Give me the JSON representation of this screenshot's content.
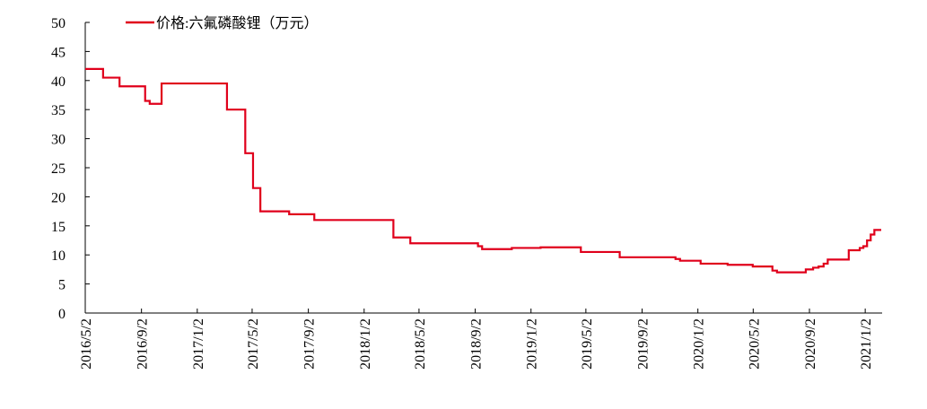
{
  "chart_data": {
    "type": "line",
    "x": [
      "2016/5/2",
      "2016/6/10",
      "2016/6/10",
      "2016/7/16",
      "2016/7/16",
      "2016/9/10",
      "2016/9/10",
      "2016/9/20",
      "2016/9/20",
      "2016/10/16",
      "2016/10/16",
      "2017/3/8",
      "2017/3/8",
      "2017/4/17",
      "2017/4/17",
      "2017/5/4",
      "2017/5/4",
      "2017/5/20",
      "2017/5/20",
      "2017/7/22",
      "2017/7/22",
      "2017/9/15",
      "2017/9/15",
      "2018/3/7",
      "2018/3/7",
      "2018/4/13",
      "2018/4/13",
      "2018/9/8",
      "2018/9/8",
      "2018/9/17",
      "2018/9/17",
      "2018/11/21",
      "2018/11/21",
      "2019/1/23",
      "2019/1/23",
      "2019/4/21",
      "2019/4/21",
      "2019/7/15",
      "2019/7/15",
      "2019/11/14",
      "2019/11/14",
      "2019/11/24",
      "2019/11/24",
      "2020/1/8",
      "2020/1/8",
      "2020/3/7",
      "2020/3/7",
      "2020/5/1",
      "2020/5/1",
      "2020/6/13",
      "2020/6/13",
      "2020/6/23",
      "2020/6/23",
      "2020/8/25",
      "2020/8/25",
      "2020/9/10",
      "2020/9/10",
      "2020/9/22",
      "2020/9/22",
      "2020/10/3",
      "2020/10/3",
      "2020/10/12",
      "2020/10/12",
      "2020/11/27",
      "2020/11/27",
      "2020/12/21",
      "2020/12/21",
      "2020/12/29",
      "2020/12/29",
      "2021/1/6",
      "2021/1/6",
      "2021/1/14",
      "2021/1/14",
      "2021/1/22",
      "2021/1/22",
      "2021/2/6"
    ],
    "series": [
      {
        "name": "价格:六氟磷酸锂（万元）",
        "color": "#e0001b",
        "values": [
          42,
          42,
          40.5,
          40.5,
          39,
          39,
          36.5,
          36.5,
          36,
          36,
          39.5,
          39.5,
          35,
          35,
          27.5,
          27.5,
          21.5,
          21.5,
          17.5,
          17.5,
          17,
          17,
          16,
          16,
          13,
          13,
          12,
          12,
          11.5,
          11.5,
          11,
          11,
          11.2,
          11.2,
          11.3,
          11.3,
          10.5,
          10.5,
          9.6,
          9.6,
          9.3,
          9.3,
          9,
          9,
          8.5,
          8.5,
          8.3,
          8.3,
          8,
          8,
          7.3,
          7.3,
          7,
          7,
          7.5,
          7.5,
          7.8,
          7.8,
          8,
          8,
          8.5,
          8.5,
          9.2,
          9.2,
          10.8,
          10.8,
          11.2,
          11.2,
          11.5,
          11.5,
          12.5,
          12.5,
          13.5,
          13.5,
          14.3,
          14.3
        ]
      }
    ],
    "xlim": [
      "2016/5/2",
      "2021/2/8"
    ],
    "xticks": [
      "2016/5/2",
      "2016/9/2",
      "2017/1/2",
      "2017/5/2",
      "2017/9/2",
      "2018/1/2",
      "2018/5/2",
      "2018/9/2",
      "2019/1/2",
      "2019/5/2",
      "2019/9/2",
      "2020/1/2",
      "2020/5/2",
      "2020/9/2",
      "2021/1/2"
    ],
    "ylim": [
      0,
      50
    ],
    "yticks": [
      0,
      5,
      10,
      15,
      20,
      25,
      30,
      35,
      40,
      45,
      50
    ],
    "legend": "top"
  }
}
